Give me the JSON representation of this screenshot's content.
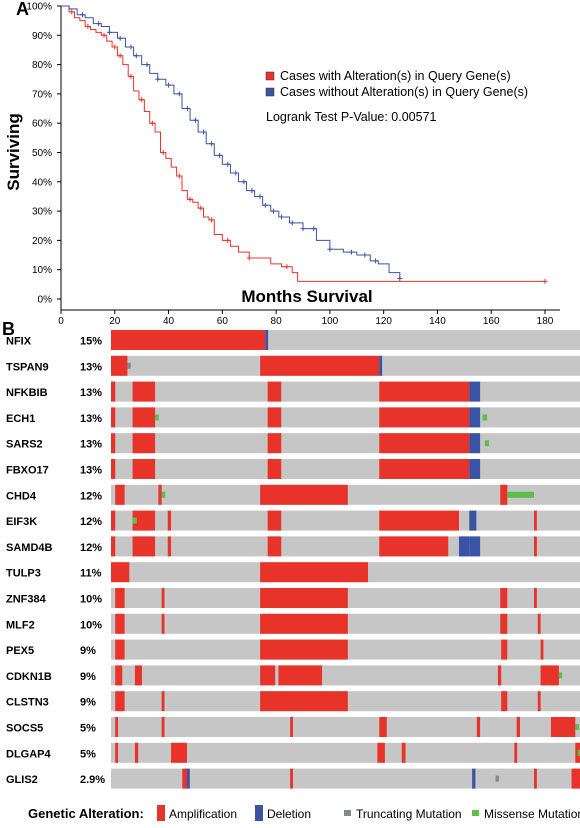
{
  "chart_data": [
    {
      "type": "line",
      "panel": "A",
      "xlabel": "Months Survival",
      "ylabel": "Surviving",
      "xlim": [
        0,
        185
      ],
      "ylim": [
        0,
        100
      ],
      "x_ticks": [
        0,
        20,
        40,
        60,
        80,
        100,
        120,
        140,
        160,
        180
      ],
      "y_ticks": [
        0,
        10,
        20,
        30,
        40,
        50,
        60,
        70,
        80,
        90,
        100
      ],
      "y_tick_labels": [
        "0%",
        "10%",
        "20%",
        "30%",
        "40%",
        "50%",
        "60%",
        "70%",
        "80%",
        "90%",
        "100%"
      ],
      "legend_position": "top-right",
      "logrank_text": "Logrank Test P-Value: 0.00571",
      "series": [
        {
          "name": "Cases with Alteration(s) in Query Gene(s)",
          "color": "#e8332a",
          "points": [
            [
              0,
              100
            ],
            [
              3,
              98
            ],
            [
              5,
              96
            ],
            [
              7,
              95
            ],
            [
              9,
              93
            ],
            [
              11,
              92
            ],
            [
              13,
              91
            ],
            [
              15,
              90
            ],
            [
              17,
              88
            ],
            [
              19,
              86
            ],
            [
              21,
              83
            ],
            [
              23,
              80
            ],
            [
              25,
              76
            ],
            [
              27,
              71
            ],
            [
              29,
              68
            ],
            [
              31,
              64
            ],
            [
              33,
              60
            ],
            [
              35,
              57
            ],
            [
              37,
              50
            ],
            [
              39,
              48
            ],
            [
              41,
              45
            ],
            [
              43,
              42
            ],
            [
              45,
              37
            ],
            [
              47,
              34
            ],
            [
              49,
              33
            ],
            [
              51,
              31
            ],
            [
              53,
              28
            ],
            [
              55,
              27
            ],
            [
              57,
              22
            ],
            [
              60,
              20
            ],
            [
              63,
              18
            ],
            [
              66,
              16
            ],
            [
              70,
              14
            ],
            [
              75,
              14
            ],
            [
              78,
              12
            ],
            [
              82,
              11
            ],
            [
              86,
              9
            ],
            [
              88,
              6
            ],
            [
              180,
              6
            ]
          ],
          "censor_x": [
            4,
            10,
            16,
            20,
            22,
            26,
            30,
            34,
            38,
            44,
            48,
            52,
            56,
            62,
            70,
            84,
            180
          ]
        },
        {
          "name": "Cases without Alteration(s) in Query Gene(s)",
          "color": "#3a53a4",
          "points": [
            [
              0,
              100
            ],
            [
              3,
              99
            ],
            [
              6,
              97
            ],
            [
              9,
              96
            ],
            [
              12,
              94
            ],
            [
              15,
              93
            ],
            [
              18,
              91
            ],
            [
              21,
              89
            ],
            [
              24,
              86
            ],
            [
              27,
              83
            ],
            [
              30,
              80
            ],
            [
              33,
              77
            ],
            [
              36,
              75
            ],
            [
              39,
              73
            ],
            [
              42,
              70
            ],
            [
              45,
              65
            ],
            [
              48,
              61
            ],
            [
              51,
              57
            ],
            [
              54,
              53
            ],
            [
              57,
              49
            ],
            [
              60,
              46
            ],
            [
              63,
              43
            ],
            [
              66,
              40
            ],
            [
              69,
              37
            ],
            [
              72,
              35
            ],
            [
              75,
              32
            ],
            [
              78,
              30
            ],
            [
              81,
              28
            ],
            [
              85,
              26
            ],
            [
              90,
              24
            ],
            [
              95,
              20
            ],
            [
              100,
              17
            ],
            [
              105,
              16
            ],
            [
              110,
              15
            ],
            [
              115,
              13
            ],
            [
              118,
              12
            ],
            [
              122,
              9
            ],
            [
              126,
              7
            ]
          ],
          "censor_x": [
            8,
            14,
            18,
            22,
            26,
            28,
            32,
            36,
            40,
            44,
            47,
            50,
            53,
            56,
            59,
            62,
            65,
            68,
            71,
            74,
            76,
            79,
            82,
            86,
            90,
            94,
            100,
            108,
            113,
            117,
            126
          ]
        }
      ]
    },
    {
      "type": "oncoprint",
      "panel": "B",
      "rows": [
        {
          "gene": "NFIX",
          "pct": "15%",
          "segs": [
            [
              0,
              0.329,
              "amp"
            ],
            [
              0.329,
              0.335,
              "del"
            ]
          ]
        },
        {
          "gene": "TSPAN9",
          "pct": "13%",
          "segs": [
            [
              0,
              0.035,
              "amp"
            ],
            [
              0.035,
              0.042,
              "trunc"
            ],
            [
              0.318,
              0.572,
              "amp"
            ],
            [
              0.572,
              0.578,
              "del"
            ]
          ]
        },
        {
          "gene": "NFKBIB",
          "pct": "13%",
          "segs": [
            [
              0,
              0.009,
              "amp"
            ],
            [
              0.046,
              0.094,
              "amp"
            ],
            [
              0.334,
              0.363,
              "amp"
            ],
            [
              0.572,
              0.764,
              "amp"
            ],
            [
              0.764,
              0.787,
              "del"
            ]
          ]
        },
        {
          "gene": "ECH1",
          "pct": "13%",
          "segs": [
            [
              0,
              0.009,
              "amp"
            ],
            [
              0.046,
              0.094,
              "amp"
            ],
            [
              0.094,
              0.102,
              "miss"
            ],
            [
              0.334,
              0.363,
              "amp"
            ],
            [
              0.572,
              0.764,
              "amp"
            ],
            [
              0.764,
              0.787,
              "del"
            ],
            [
              0.792,
              0.802,
              "miss"
            ]
          ]
        },
        {
          "gene": "SARS2",
          "pct": "13%",
          "segs": [
            [
              0,
              0.009,
              "amp"
            ],
            [
              0.046,
              0.094,
              "amp"
            ],
            [
              0.334,
              0.363,
              "amp"
            ],
            [
              0.572,
              0.764,
              "amp"
            ],
            [
              0.764,
              0.787,
              "del"
            ],
            [
              0.797,
              0.806,
              "miss"
            ]
          ]
        },
        {
          "gene": "FBXO17",
          "pct": "13%",
          "segs": [
            [
              0,
              0.009,
              "amp"
            ],
            [
              0.046,
              0.094,
              "amp"
            ],
            [
              0.334,
              0.363,
              "amp"
            ],
            [
              0.572,
              0.764,
              "amp"
            ],
            [
              0.764,
              0.787,
              "del"
            ]
          ]
        },
        {
          "gene": "CHD4",
          "pct": "12%",
          "segs": [
            [
              0.009,
              0.029,
              "amp"
            ],
            [
              0.101,
              0.108,
              "amp"
            ],
            [
              0.108,
              0.116,
              "miss"
            ],
            [
              0.318,
              0.505,
              "amp"
            ],
            [
              0.83,
              0.845,
              "amp"
            ],
            [
              0.845,
              0.902,
              "miss"
            ]
          ]
        },
        {
          "gene": "EIF3K",
          "pct": "12%",
          "segs": [
            [
              0,
              0.009,
              "amp"
            ],
            [
              0.046,
              0.094,
              "amp"
            ],
            [
              0.046,
              0.055,
              "miss"
            ],
            [
              0.121,
              0.128,
              "amp"
            ],
            [
              0.334,
              0.363,
              "amp"
            ],
            [
              0.572,
              0.742,
              "amp"
            ],
            [
              0.764,
              0.779,
              "del"
            ],
            [
              0.902,
              0.908,
              "amp"
            ]
          ]
        },
        {
          "gene": "SAMD4B",
          "pct": "12%",
          "segs": [
            [
              0,
              0.009,
              "amp"
            ],
            [
              0.046,
              0.094,
              "amp"
            ],
            [
              0.121,
              0.128,
              "amp"
            ],
            [
              0.334,
              0.363,
              "amp"
            ],
            [
              0.572,
              0.719,
              "amp"
            ],
            [
              0.742,
              0.764,
              "del"
            ],
            [
              0.764,
              0.787,
              "del"
            ],
            [
              0.902,
              0.908,
              "amp"
            ]
          ]
        },
        {
          "gene": "TULP3",
          "pct": "11%",
          "segs": [
            [
              0,
              0.039,
              "amp"
            ],
            [
              0.318,
              0.548,
              "amp"
            ]
          ]
        },
        {
          "gene": "ZNF384",
          "pct": "10%",
          "segs": [
            [
              0.009,
              0.029,
              "amp"
            ],
            [
              0.108,
              0.114,
              "amp"
            ],
            [
              0.318,
              0.505,
              "amp"
            ],
            [
              0.83,
              0.845,
              "amp"
            ],
            [
              0.902,
              0.908,
              "amp"
            ]
          ]
        },
        {
          "gene": "MLF2",
          "pct": "10%",
          "segs": [
            [
              0.009,
              0.029,
              "amp"
            ],
            [
              0.108,
              0.114,
              "amp"
            ],
            [
              0.318,
              0.505,
              "amp"
            ],
            [
              0.83,
              0.845,
              "amp"
            ],
            [
              0.91,
              0.916,
              "amp"
            ]
          ]
        },
        {
          "gene": "PEX5",
          "pct": "9%",
          "segs": [
            [
              0.009,
              0.029,
              "amp"
            ],
            [
              0.318,
              0.505,
              "amp"
            ],
            [
              0.832,
              0.845,
              "amp"
            ],
            [
              0.916,
              0.922,
              "amp"
            ]
          ]
        },
        {
          "gene": "CDKN1B",
          "pct": "9%",
          "segs": [
            [
              0.009,
              0.024,
              "amp"
            ],
            [
              0.051,
              0.066,
              "amp"
            ],
            [
              0.318,
              0.35,
              "amp"
            ],
            [
              0.357,
              0.45,
              "amp"
            ],
            [
              0.825,
              0.832,
              "amp"
            ],
            [
              0.916,
              0.955,
              "amp"
            ],
            [
              0.955,
              0.962,
              "miss"
            ]
          ]
        },
        {
          "gene": "CLSTN3",
          "pct": "9%",
          "segs": [
            [
              0.009,
              0.029,
              "amp"
            ],
            [
              0.108,
              0.114,
              "amp"
            ],
            [
              0.318,
              0.505,
              "amp"
            ],
            [
              0.832,
              0.845,
              "amp"
            ],
            [
              0.91,
              0.916,
              "amp"
            ]
          ]
        },
        {
          "gene": "SOCS5",
          "pct": "5%",
          "segs": [
            [
              0.009,
              0.015,
              "amp"
            ],
            [
              0.108,
              0.114,
              "amp"
            ],
            [
              0.382,
              0.388,
              "amp"
            ],
            [
              0.572,
              0.588,
              "amp"
            ],
            [
              0.78,
              0.787,
              "amp"
            ],
            [
              0.865,
              0.872,
              "amp"
            ],
            [
              0.938,
              0.99,
              "amp"
            ],
            [
              0.99,
              0.998,
              "miss"
            ]
          ]
        },
        {
          "gene": "DLGAP4",
          "pct": "5%",
          "segs": [
            [
              0.009,
              0.015,
              "amp"
            ],
            [
              0.051,
              0.058,
              "amp"
            ],
            [
              0.128,
              0.162,
              "amp"
            ],
            [
              0.568,
              0.584,
              "amp"
            ],
            [
              0.62,
              0.628,
              "amp"
            ],
            [
              0.86,
              0.866,
              "amp"
            ],
            [
              0.99,
              1.0,
              "amp"
            ],
            [
              0.995,
              1.0,
              "miss"
            ]
          ]
        },
        {
          "gene": "GLIS2",
          "pct": "2.9%",
          "segs": [
            [
              0.152,
              0.162,
              "amp"
            ],
            [
              0.162,
              0.168,
              "del"
            ],
            [
              0.382,
              0.388,
              "amp"
            ],
            [
              0.77,
              0.777,
              "del"
            ],
            [
              0.82,
              0.827,
              "trunc"
            ],
            [
              0.902,
              0.908,
              "amp"
            ],
            [
              0.982,
              1.0,
              "amp"
            ]
          ]
        }
      ]
    }
  ],
  "figure": {
    "panel_a_letter": "A",
    "panel_b_letter": "B"
  },
  "legend_b": {
    "title": "Genetic Alteration:",
    "items": [
      {
        "label": "Amplification",
        "kind": "amp"
      },
      {
        "label": "Deletion",
        "kind": "del"
      },
      {
        "label": "Truncating Mutation",
        "kind": "trunc"
      },
      {
        "label": "Missense Mutation",
        "kind": "miss"
      }
    ]
  },
  "colors": {
    "amp": "#e8332a",
    "del": "#3a53a4",
    "trunc": "#7f8a8f",
    "miss": "#5bbf4a",
    "track": "#c6c6c6",
    "alt_line": "#e8332a",
    "unalt_line": "#3a53a4"
  }
}
